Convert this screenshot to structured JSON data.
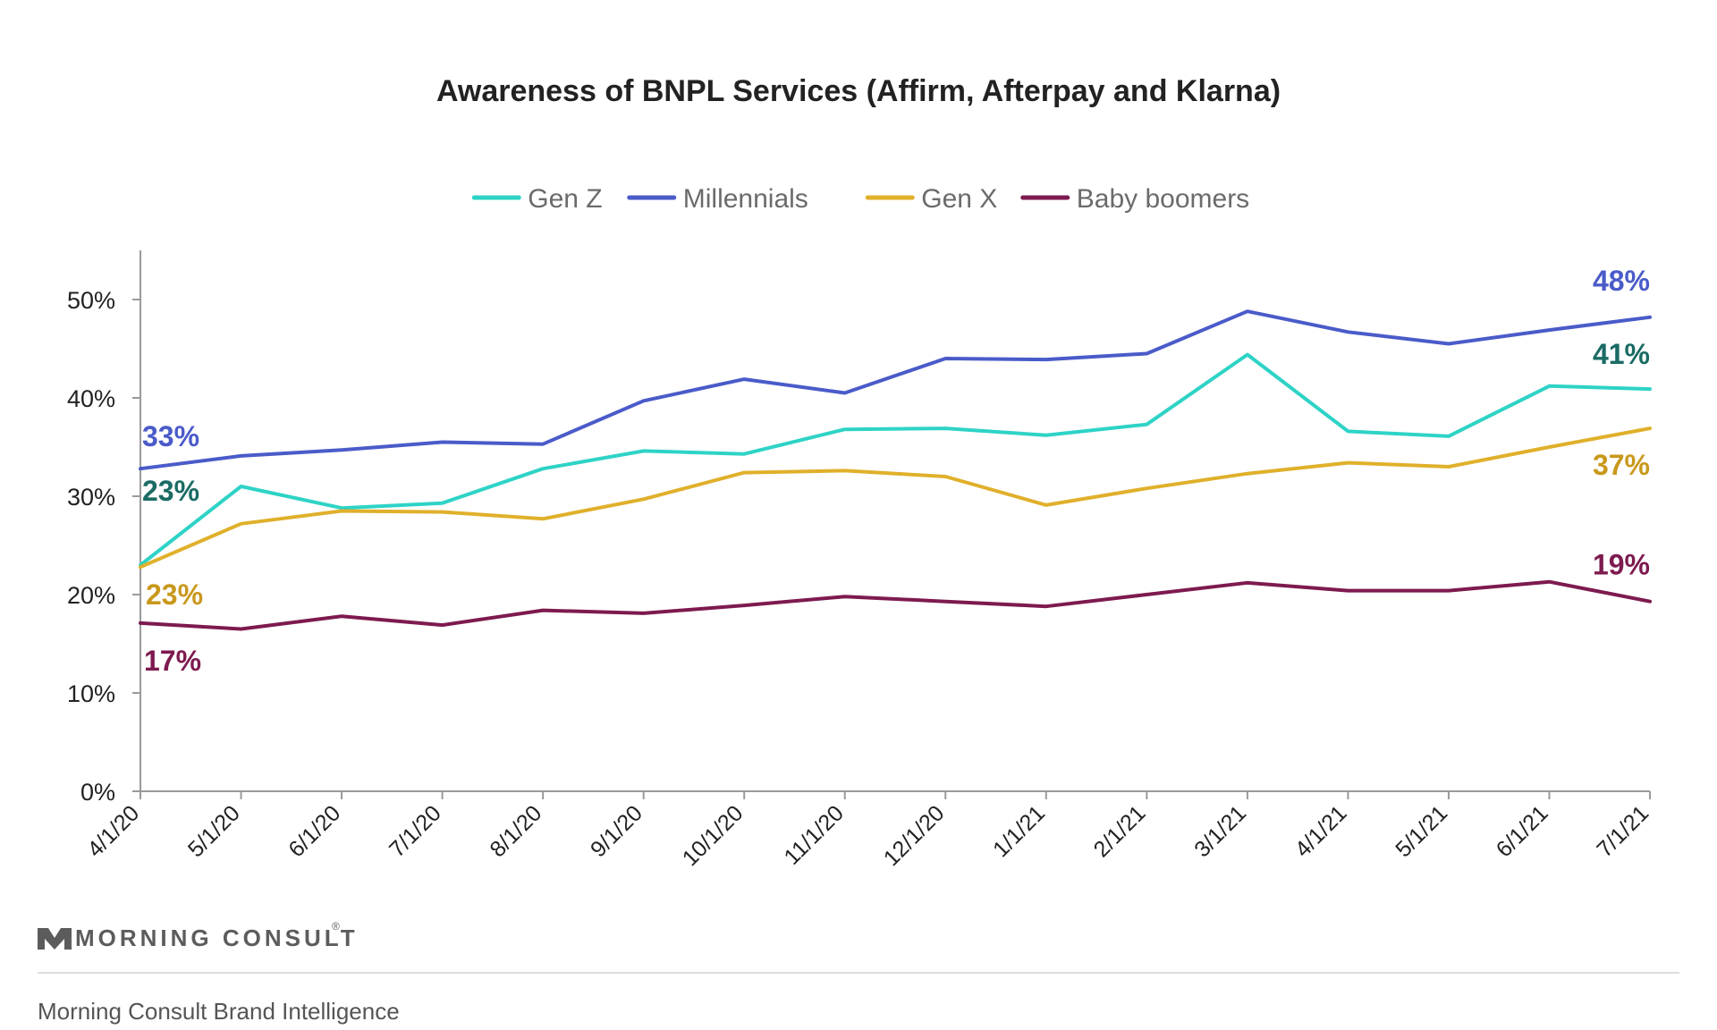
{
  "chart_data": {
    "type": "line",
    "title": "Awareness of BNPL Services (Affirm, Afterpay and Klarna)",
    "xlabel": "",
    "ylabel": "",
    "categories": [
      "4/1/20",
      "5/1/20",
      "6/1/20",
      "7/1/20",
      "8/1/20",
      "9/1/20",
      "10/1/20",
      "11/1/20",
      "12/1/20",
      "1/1/21",
      "2/1/21",
      "3/1/21",
      "4/1/21",
      "5/1/21",
      "6/1/21",
      "7/1/21"
    ],
    "ylim": [
      0,
      55
    ],
    "yticks": [
      0,
      10,
      20,
      30,
      40,
      50
    ],
    "ytick_labels": [
      "0%",
      "10%",
      "20%",
      "30%",
      "40%",
      "50%"
    ],
    "grid": false,
    "legend_position": "top-center",
    "series": [
      {
        "name": "Gen Z",
        "color": "#2ed3c6",
        "label_color": "#1a6b64",
        "values": [
          23,
          31,
          28.8,
          29.3,
          32.8,
          34.6,
          34.3,
          36.8,
          36.9,
          36.2,
          37.3,
          44.4,
          36.6,
          36.1,
          41.2,
          40.9
        ],
        "start_label": "23%",
        "end_label": "41%"
      },
      {
        "name": "Millennials",
        "color": "#4a5bc9",
        "label_color": "#4a5bc9",
        "values": [
          32.8,
          34.1,
          34.7,
          35.5,
          35.3,
          39.7,
          41.9,
          40.5,
          44,
          43.9,
          44.5,
          48.8,
          46.7,
          45.5,
          46.9,
          48.2
        ],
        "start_label": "33%",
        "end_label": "48%"
      },
      {
        "name": "Gen X",
        "color": "#e0b02b",
        "label_color": "#c9981c",
        "values": [
          22.8,
          27.2,
          28.5,
          28.4,
          27.7,
          29.7,
          32.4,
          32.6,
          32,
          29.1,
          30.8,
          32.3,
          33.4,
          33,
          35,
          36.9
        ],
        "start_label": "23%",
        "end_label": "37%"
      },
      {
        "name": "Baby boomers",
        "color": "#7d1a4f",
        "label_color": "#7d1a4f",
        "values": [
          17.1,
          16.5,
          17.8,
          16.9,
          18.4,
          18.1,
          18.9,
          19.8,
          19.3,
          18.8,
          20,
          21.2,
          20.4,
          20.4,
          21.3,
          19.3
        ],
        "start_label": "17%",
        "end_label": "19%"
      }
    ]
  },
  "footer": {
    "brand": "MORNING CONSULT",
    "source": "Morning Consult Brand Intelligence",
    "brand_color": "#5c5c5c",
    "rule_color": "#dddddd"
  }
}
